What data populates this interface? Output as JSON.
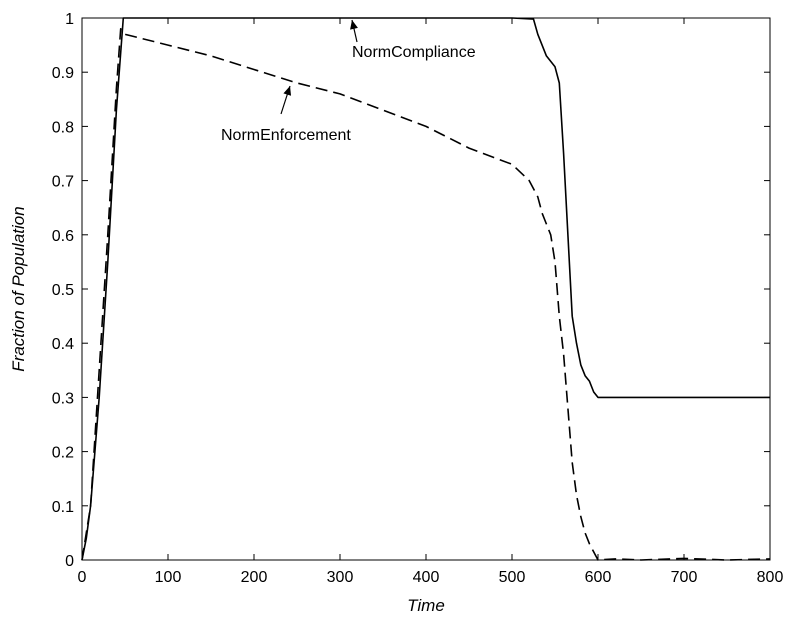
{
  "chart_data": {
    "type": "line",
    "xlabel": "Time",
    "ylabel": "Fraction of Population",
    "xlim": [
      0,
      800
    ],
    "ylim": [
      0,
      1
    ],
    "xticks": [
      0,
      100,
      200,
      300,
      400,
      500,
      600,
      700,
      800
    ],
    "yticks": [
      0,
      0.1,
      0.2,
      0.3,
      0.4,
      0.5,
      0.6,
      0.7,
      0.8,
      0.9,
      1
    ],
    "grid": false,
    "series": [
      {
        "name": "NormCompliance",
        "style": "solid",
        "color": "#000000",
        "x": [
          0,
          5,
          10,
          20,
          30,
          40,
          48,
          100,
          200,
          300,
          400,
          500,
          525,
          530,
          540,
          550,
          555,
          560,
          565,
          570,
          575,
          580,
          585,
          590,
          595,
          600,
          650,
          700,
          800
        ],
        "y": [
          0,
          0.04,
          0.1,
          0.3,
          0.55,
          0.83,
          1.0,
          1.0,
          1.0,
          1.0,
          1.0,
          1.0,
          0.998,
          0.97,
          0.93,
          0.91,
          0.88,
          0.75,
          0.6,
          0.45,
          0.4,
          0.36,
          0.34,
          0.33,
          0.31,
          0.3,
          0.3,
          0.3,
          0.3
        ]
      },
      {
        "name": "NormEnforcement",
        "style": "dashed",
        "color": "#000000",
        "x": [
          0,
          5,
          10,
          20,
          30,
          40,
          45,
          50,
          100,
          150,
          200,
          250,
          300,
          350,
          400,
          450,
          500,
          520,
          530,
          535,
          540,
          545,
          550,
          555,
          560,
          565,
          570,
          575,
          580,
          585,
          590,
          595,
          600,
          620,
          650,
          700,
          750,
          800
        ],
        "y": [
          0,
          0.05,
          0.1,
          0.35,
          0.6,
          0.87,
          0.98,
          0.97,
          0.95,
          0.93,
          0.905,
          0.88,
          0.86,
          0.83,
          0.8,
          0.76,
          0.73,
          0.7,
          0.67,
          0.64,
          0.62,
          0.6,
          0.55,
          0.45,
          0.38,
          0.28,
          0.18,
          0.12,
          0.08,
          0.05,
          0.03,
          0.015,
          0.0,
          0.002,
          0.0,
          0.003,
          0.0,
          0.002
        ]
      }
    ],
    "annotations": [
      {
        "text": "NormCompliance",
        "series": "NormCompliance",
        "x": 320,
        "y": 1.0
      },
      {
        "text": "NormEnforcement",
        "series": "NormEnforcement",
        "x": 240,
        "y": 0.88
      }
    ]
  }
}
